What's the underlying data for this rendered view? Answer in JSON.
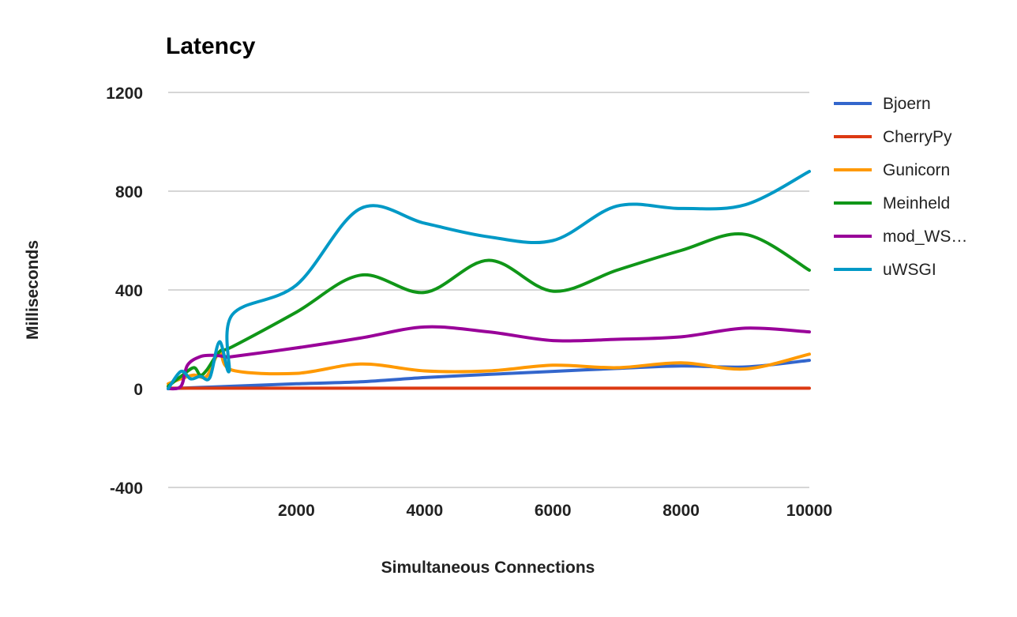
{
  "chart_data": {
    "type": "line",
    "title": "Latency",
    "xlabel": "Simultaneous Connections",
    "ylabel": "Milliseconds",
    "xlim": [
      0,
      10000
    ],
    "ylim": [
      -400,
      1200
    ],
    "xticks": [
      2000,
      4000,
      6000,
      8000,
      10000
    ],
    "yticks": [
      -400,
      0,
      400,
      800,
      1200
    ],
    "grid": true,
    "legend_position": "right",
    "series": [
      {
        "name": "Bjoern",
        "color": "#3366cc",
        "x": [
          0,
          500,
          1000,
          2000,
          3000,
          4000,
          5000,
          6000,
          7000,
          8000,
          9000,
          10000
        ],
        "y": [
          0,
          5,
          10,
          20,
          28,
          45,
          58,
          70,
          82,
          92,
          88,
          115
        ]
      },
      {
        "name": "CherryPy",
        "color": "#dc3912",
        "x": [
          0,
          1000,
          2000,
          3000,
          4000,
          5000,
          6000,
          7000,
          8000,
          9000,
          10000
        ],
        "y": [
          2,
          2,
          2,
          2,
          2,
          2,
          2,
          2,
          2,
          2,
          2
        ]
      },
      {
        "name": "Gunicorn",
        "color": "#ff9900",
        "x": [
          0,
          200,
          400,
          600,
          800,
          1000,
          2000,
          3000,
          4000,
          5000,
          6000,
          7000,
          8000,
          9000,
          10000
        ],
        "y": [
          20,
          40,
          55,
          50,
          145,
          75,
          62,
          100,
          72,
          72,
          95,
          85,
          105,
          80,
          140
        ]
      },
      {
        "name": "Meinheld",
        "color": "#109618",
        "x": [
          0,
          200,
          400,
          500,
          600,
          800,
          1000,
          2000,
          3000,
          4000,
          5000,
          6000,
          7000,
          8000,
          9000,
          10000
        ],
        "y": [
          10,
          50,
          85,
          55,
          75,
          150,
          170,
          310,
          460,
          390,
          520,
          395,
          480,
          560,
          625,
          480
        ]
      },
      {
        "name": "mod_WS…",
        "color": "#990099",
        "x": [
          0,
          200,
          300,
          500,
          700,
          900,
          1000,
          2000,
          3000,
          4000,
          5000,
          6000,
          7000,
          8000,
          9000,
          10000
        ],
        "y": [
          0,
          10,
          95,
          130,
          135,
          130,
          130,
          165,
          205,
          250,
          230,
          195,
          200,
          210,
          245,
          230
        ]
      },
      {
        "name": "uWSGI",
        "color": "#0099c6",
        "x": [
          0,
          200,
          350,
          500,
          650,
          800,
          950,
          1000,
          2000,
          3000,
          4000,
          5000,
          6000,
          7000,
          8000,
          9000,
          10000
        ],
        "y": [
          0,
          70,
          40,
          50,
          45,
          190,
          70,
          300,
          420,
          730,
          670,
          615,
          600,
          740,
          730,
          745,
          880
        ]
      }
    ]
  }
}
